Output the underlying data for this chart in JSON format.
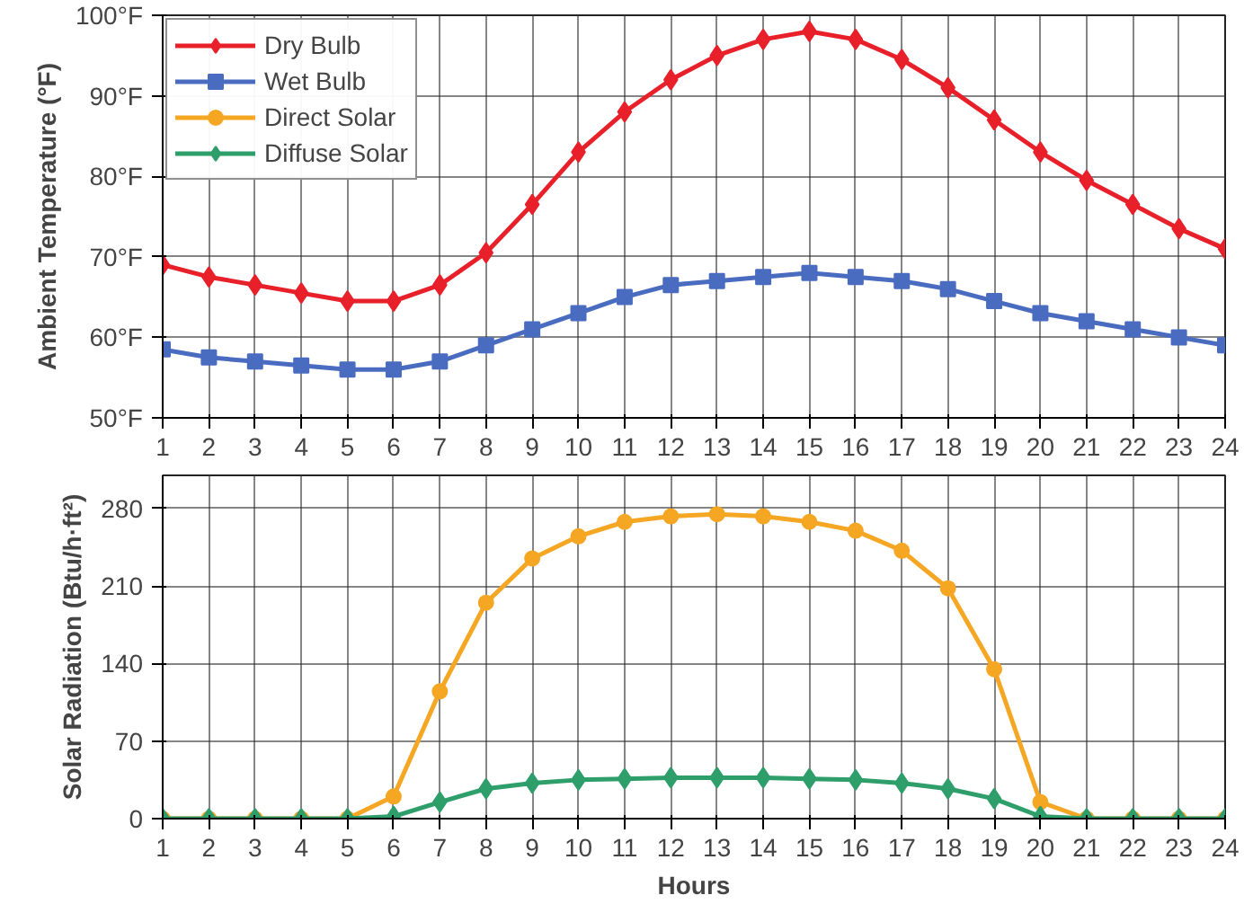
{
  "chart_data": [
    {
      "type": "line",
      "ylabel": "Ambient Temperature (°F)",
      "x": [
        1,
        2,
        3,
        4,
        5,
        6,
        7,
        8,
        9,
        10,
        11,
        12,
        13,
        14,
        15,
        16,
        17,
        18,
        19,
        20,
        21,
        22,
        23,
        24
      ],
      "xlim": [
        1,
        24
      ],
      "xticks": [
        1,
        2,
        3,
        4,
        5,
        6,
        7,
        8,
        9,
        10,
        11,
        12,
        13,
        14,
        15,
        16,
        17,
        18,
        19,
        20,
        21,
        22,
        23,
        24
      ],
      "ylim": [
        50,
        100
      ],
      "yticks": [
        {
          "value": 50,
          "label": "50°F"
        },
        {
          "value": 60,
          "label": "60°F"
        },
        {
          "value": 70,
          "label": "70°F"
        },
        {
          "value": 80,
          "label": "80°F"
        },
        {
          "value": 90,
          "label": "90°F"
        },
        {
          "value": 100,
          "label": "100°F"
        }
      ],
      "grid": true,
      "legend": "top left",
      "line_style": "solid",
      "series": [
        {
          "name": "Dry Bulb",
          "color": "#e8202a",
          "marker": "diamond",
          "values": [
            69,
            67.5,
            66.5,
            65.5,
            64.5,
            64.5,
            66.5,
            70.5,
            76.5,
            83,
            88,
            92,
            95,
            97,
            98,
            97,
            94.5,
            91,
            87,
            83,
            79.5,
            76.5,
            73.5,
            71
          ]
        },
        {
          "name": "Wet Bulb",
          "color": "#4a6cc0",
          "marker": "square",
          "values": [
            58.5,
            57.5,
            57,
            56.5,
            56,
            56,
            57,
            59,
            61,
            63,
            65,
            66.5,
            67,
            67.5,
            68,
            67.5,
            67,
            66,
            64.5,
            63,
            62,
            61,
            60,
            59
          ]
        }
      ]
    },
    {
      "type": "line",
      "ylabel": "Solar Radiation (Btu/h·ft²)",
      "xlabel": "Hours",
      "x": [
        1,
        2,
        3,
        4,
        5,
        6,
        7,
        8,
        9,
        10,
        11,
        12,
        13,
        14,
        15,
        16,
        17,
        18,
        19,
        20,
        21,
        22,
        23,
        24
      ],
      "xlim": [
        1,
        24
      ],
      "xticks": [
        1,
        2,
        3,
        4,
        5,
        6,
        7,
        8,
        9,
        10,
        11,
        12,
        13,
        14,
        15,
        16,
        17,
        18,
        19,
        20,
        21,
        22,
        23,
        24
      ],
      "ylim": [
        0,
        310
      ],
      "yticks": [
        0,
        70,
        140,
        210,
        280
      ],
      "grid": true,
      "legend": "top",
      "line_style": "solid",
      "series": [
        {
          "name": "Direct Solar",
          "color": "#f5a623",
          "marker": "circle",
          "values": [
            0,
            0,
            0,
            0,
            0,
            20,
            115,
            195,
            235,
            255,
            268,
            273,
            275,
            273,
            268,
            260,
            242,
            208,
            135,
            15,
            0,
            0,
            0,
            0
          ]
        },
        {
          "name": "Diffuse Solar",
          "color": "#2e9e6a",
          "marker": "diamond",
          "values": [
            0,
            0,
            0,
            0,
            0,
            2,
            15,
            27,
            32,
            35,
            36,
            37,
            37,
            37,
            36,
            35,
            32,
            27,
            18,
            2,
            0,
            0,
            0,
            0
          ]
        }
      ]
    }
  ]
}
